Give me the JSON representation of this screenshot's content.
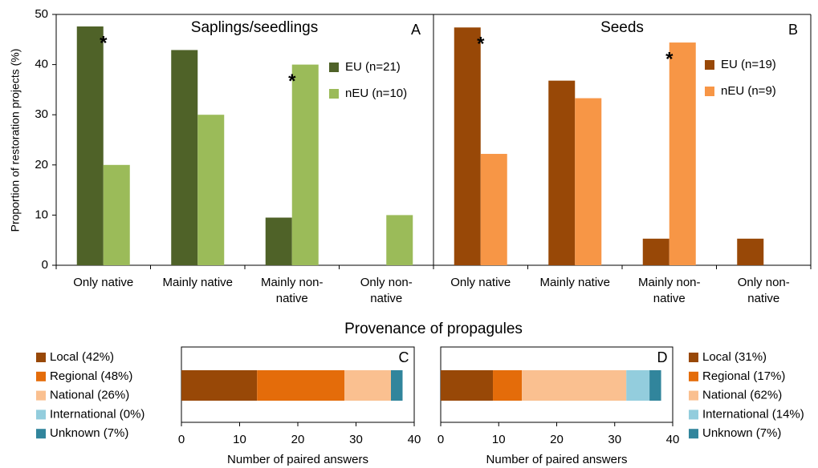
{
  "heading": "Provenance of propagules",
  "y_label": "Proportion of restoration projects (%)",
  "chart_data": [
    {
      "type": "bar",
      "title": "Saplings/seedlings",
      "panel_label": "A",
      "categories": [
        "Only native",
        "Mainly native",
        "Mainly non-native",
        "Only non-native"
      ],
      "series": [
        {
          "name": "EU (n=21)",
          "color": "#4f6228",
          "values": [
            47.6,
            42.9,
            9.5,
            0
          ]
        },
        {
          "name": "nEU (n=10)",
          "color": "#9bbb59",
          "values": [
            20,
            30,
            40,
            10
          ]
        }
      ],
      "ylim": [
        0,
        50
      ],
      "yticks": [
        0,
        10,
        20,
        30,
        40,
        50
      ],
      "annotations": [
        {
          "text": "*",
          "category": "Only native"
        },
        {
          "text": "*",
          "category": "Mainly non-native"
        }
      ]
    },
    {
      "type": "bar",
      "title": "Seeds",
      "panel_label": "B",
      "categories": [
        "Only native",
        "Mainly native",
        "Mainly non-native",
        "Only non-native"
      ],
      "series": [
        {
          "name": "EU (n=19)",
          "color": "#984807",
          "values": [
            47.4,
            36.8,
            5.3,
            5.3
          ]
        },
        {
          "name": "nEU (n=9)",
          "color": "#f79646",
          "values": [
            22.2,
            33.3,
            44.4,
            0
          ]
        }
      ],
      "ylim": [
        0,
        50
      ],
      "annotations": [
        {
          "text": "*",
          "category": "Only native"
        },
        {
          "text": "*",
          "category": "Mainly non-native"
        }
      ]
    },
    {
      "type": "hstack",
      "panel_label": "C",
      "x_label": "Number of paired answers",
      "series": [
        {
          "name": "Local (42%)",
          "color": "#984807",
          "values": [
            13
          ]
        },
        {
          "name": "Regional (48%)",
          "color": "#e46c0a",
          "values": [
            15
          ]
        },
        {
          "name": "National (26%)",
          "color": "#fac090",
          "values": [
            8
          ]
        },
        {
          "name": "International (0%)",
          "color": "#93cddd",
          "values": [
            0
          ]
        },
        {
          "name": "Unknown (7%)",
          "color": "#31859c",
          "values": [
            2
          ]
        }
      ],
      "xlim": [
        0,
        40
      ],
      "xticks": [
        0,
        10,
        20,
        30,
        40
      ]
    },
    {
      "type": "hstack",
      "panel_label": "D",
      "x_label": "Number of paired answers",
      "series": [
        {
          "name": "Local (31%)",
          "color": "#984807",
          "values": [
            9
          ]
        },
        {
          "name": "Regional (17%)",
          "color": "#e46c0a",
          "values": [
            5
          ]
        },
        {
          "name": "National (62%)",
          "color": "#fac090",
          "values": [
            18
          ]
        },
        {
          "name": "International (14%)",
          "color": "#93cddd",
          "values": [
            4
          ]
        },
        {
          "name": "Unknown (7%)",
          "color": "#31859c",
          "values": [
            2
          ]
        }
      ],
      "xlim": [
        0,
        40
      ],
      "xticks": [
        0,
        10,
        20,
        30,
        40
      ]
    }
  ]
}
